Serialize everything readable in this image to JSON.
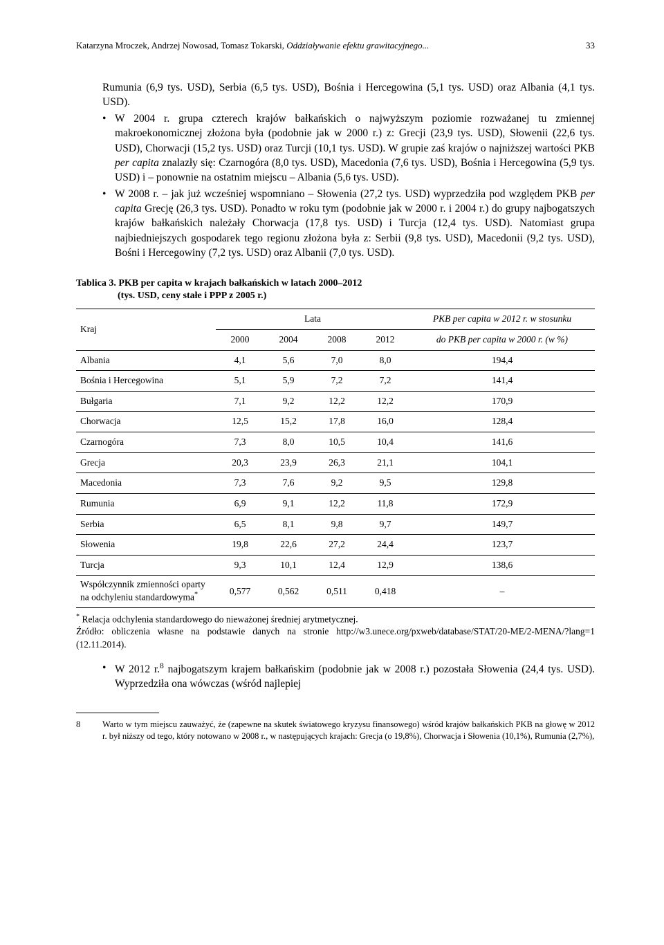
{
  "running_head": {
    "authors": "Katarzyna Mroczek, Andrzej Nowosad, Tomasz Tokarski,",
    "title_frag": "Oddziaływanie efektu grawitacyjnego...",
    "page_number": "33"
  },
  "intro_line": "Rumunia (6,9 tys. USD), Serbia (6,5 tys. USD), Bośnia i Hercegowina (5,1 tys. USD) oraz Albania (4,1 tys. USD).",
  "bullets": [
    "W 2004 r. grupa czterech krajów bałkańskich o najwyższym poziomie rozważanej tu zmiennej makroekonomicznej złożona była (podobnie jak w 2000 r.) z: Grecji (23,9 tys. USD), Słowenii (22,6 tys. USD), Chorwacji (15,2 tys. USD) oraz Turcji (10,1 tys. USD). W grupie zaś krajów o najniższej wartości PKB per capita znalazły się: Czarnogóra (8,0 tys. USD), Macedonia (7,6 tys. USD), Bośnia i Hercegowina (5,9 tys. USD) i – ponownie na ostatnim miejscu – Albania (5,6 tys. USD).",
    "W 2008 r. – jak już wcześniej wspomniano – Słowenia (27,2 tys. USD) wyprzedziła pod względem PKB per capita Grecję (26,3 tys. USD). Ponadto w roku tym (podobnie jak w 2000 r. i 2004 r.) do grupy najbogatszych krajów bałkańskich należały Chorwacja (17,8 tys. USD) i Turcja (12,4 tys. USD). Natomiast grupa najbiedniejszych gospodarek tego regionu złożona była z: Serbii (9,8 tys. USD), Macedonii (9,2 tys. USD), Bośni i Hercegowiny (7,2 tys. USD) oraz Albanii (7,0 tys. USD)."
  ],
  "table": {
    "caption_main": "Tablica 3. PKB per capita w krajach bałkańskich w latach 2000–2012",
    "caption_sub": "(tys. USD, ceny stałe i PPP z 2005 r.)",
    "header_country": "Kraj",
    "header_years_group": "Lata",
    "years": [
      "2000",
      "2004",
      "2008",
      "2012"
    ],
    "header_pct_line1": "PKB per capita w 2012 r. w stosunku",
    "header_pct_line2": "do PKB per capita w 2000 r. (w %)",
    "rows": [
      {
        "country": "Albania",
        "v": [
          "4,1",
          "5,6",
          "7,0",
          "8,0"
        ],
        "pct": "194,4"
      },
      {
        "country": "Bośnia i Hercegowina",
        "v": [
          "5,1",
          "5,9",
          "7,2",
          "7,2"
        ],
        "pct": "141,4"
      },
      {
        "country": "Bułgaria",
        "v": [
          "7,1",
          "9,2",
          "12,2",
          "12,2"
        ],
        "pct": "170,9"
      },
      {
        "country": "Chorwacja",
        "v": [
          "12,5",
          "15,2",
          "17,8",
          "16,0"
        ],
        "pct": "128,4"
      },
      {
        "country": "Czarnogóra",
        "v": [
          "7,3",
          "8,0",
          "10,5",
          "10,4"
        ],
        "pct": "141,6"
      },
      {
        "country": "Grecja",
        "v": [
          "20,3",
          "23,9",
          "26,3",
          "21,1"
        ],
        "pct": "104,1"
      },
      {
        "country": "Macedonia",
        "v": [
          "7,3",
          "7,6",
          "9,2",
          "9,5"
        ],
        "pct": "129,8"
      },
      {
        "country": "Rumunia",
        "v": [
          "6,9",
          "9,1",
          "12,2",
          "11,8"
        ],
        "pct": "172,9"
      },
      {
        "country": "Serbia",
        "v": [
          "6,5",
          "8,1",
          "9,8",
          "9,7"
        ],
        "pct": "149,7"
      },
      {
        "country": "Słowenia",
        "v": [
          "19,8",
          "22,6",
          "27,2",
          "24,4"
        ],
        "pct": "123,7"
      },
      {
        "country": "Turcja",
        "v": [
          "9,3",
          "10,1",
          "12,4",
          "12,9"
        ],
        "pct": "138,6"
      },
      {
        "country": "Współczynnik zmienności oparty na odchyleniu standardowyma*",
        "v": [
          "0,577",
          "0,562",
          "0,511",
          "0,418"
        ],
        "pct": "–"
      }
    ]
  },
  "table_note": "* Relacja odchylenia standardowego do nieważonej średniej arytmetycznej.\nŹródło: obliczenia własne na podstawie danych na stronie http://w3.unece.org/pxweb/database/STAT/20-ME/2-MENA/?lang=1 (12.11.2014).",
  "post_table_bullet": "W 2012 r.⁸ najbogatszym krajem bałkańskim (podobnie jak w 2008 r.) pozostała Słowenia (24,4 tys. USD). Wyprzedziła ona wówczas (wśród najlepiej",
  "footnote": {
    "num": "8",
    "text": "Warto w tym miejscu zauważyć, że (zapewne na skutek światowego kryzysu finansowego) wśród krajów bałkańskich PKB na głowę w 2012 r. był niższy od tego, który notowano w 2008 r., w następujących krajach: Grecja (o 19,8%), Chorwacja i Słowenia (10,1%), Rumunia (2,7%),"
  },
  "style": {
    "text_color": "#000000",
    "bg_color": "#ffffff",
    "body_fontsize": 15.5,
    "table_fontsize": 13.5,
    "footnote_fontsize": 12.5
  }
}
